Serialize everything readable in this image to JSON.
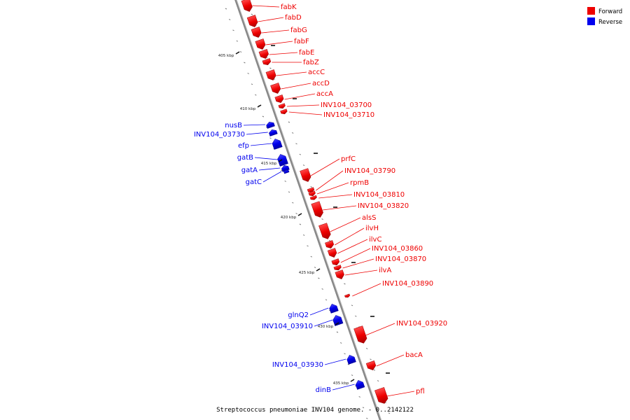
{
  "caption": "Streptococcus pneumoniae INV104 genome. - 0..2142122",
  "legend": [
    {
      "label": "Forward",
      "color": "#ee0000"
    },
    {
      "label": "Reverse",
      "color": "#0000ee"
    }
  ],
  "colors": {
    "forward": "#ee0000",
    "reverse": "#0000ee",
    "backbone": "#888888"
  },
  "scale_labels": [
    "405 kbp",
    "410 kbp",
    "415 kbp",
    "420 kbp",
    "425 kbp",
    "430 kbp",
    "435 kbp"
  ],
  "forward_genes": [
    "fabK",
    "fabD",
    "fabG",
    "fabF",
    "fabE",
    "fabZ",
    "accC",
    "accD",
    "accA",
    "INV104_03700",
    "INV104_03710",
    "prfC",
    "INV104_03790",
    "rpmB",
    "INV104_03810",
    "INV104_03820",
    "alsS",
    "ilvH",
    "ilvC",
    "INV104_03860",
    "INV104_03870",
    "ilvA",
    "INV104_03890",
    "INV104_03920",
    "bacA",
    "pfl"
  ],
  "reverse_genes": [
    "nusB",
    "INV104_03730",
    "efp",
    "gatB",
    "gatA",
    "gatC",
    "glnQ2",
    "INV104_03910",
    "INV104_03930",
    "dinB"
  ]
}
